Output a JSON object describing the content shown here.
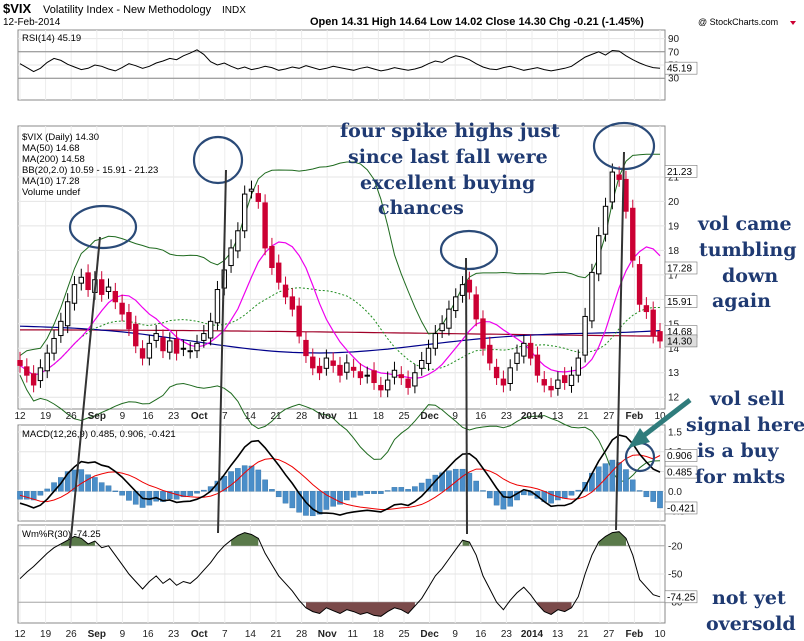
{
  "header": {
    "symbol": "$VIX",
    "name": "Volatility Index - New Methodology",
    "exchange": "INDX",
    "date": "12-Feb-2014",
    "watermark": "@ StockCharts.com",
    "quote": "Open 14.31  High 14.64  Low 14.02  Close 14.30  Chg -0.21 (-1.45%)"
  },
  "chart_data": [
    {
      "type": "line",
      "panel": "RSI",
      "legend": "RSI(14) 45.19",
      "ylim": [
        0,
        100
      ],
      "y_ticks": [
        30,
        50,
        70,
        90
      ],
      "last_value_tag": "45.19",
      "colors": {
        "line": "#000000",
        "band": "#9e9e9e"
      },
      "values": [
        52,
        46,
        40,
        45,
        54,
        60,
        57,
        51,
        47,
        43,
        45,
        50,
        48,
        44,
        41,
        46,
        52,
        49,
        45,
        48,
        53,
        56,
        60,
        58,
        64,
        68,
        73,
        66,
        55,
        50,
        53,
        48,
        44,
        47,
        43,
        45,
        48,
        46,
        42,
        44,
        47,
        45,
        49,
        46,
        43,
        45,
        48,
        46,
        44,
        42,
        45,
        47,
        44,
        41,
        43,
        46,
        44,
        42,
        44,
        47,
        52,
        56,
        54,
        60,
        64,
        62,
        58,
        52,
        47,
        44,
        43,
        46,
        48,
        45,
        42,
        44,
        46,
        43,
        41,
        43,
        45,
        48,
        55,
        62,
        66,
        70,
        65,
        72,
        71,
        64,
        58,
        53,
        49,
        46,
        45.19
      ]
    },
    {
      "type": "candlestick",
      "panel": "price",
      "legend": [
        "$VIX (Daily) 14.30",
        "MA(50) 14.68",
        "MA(200) 14.58",
        "BB(20,2.0) 10.59 - 15.91 - 21.23",
        "MA(10) 17.28",
        "Volume undef"
      ],
      "ylim": [
        11.6,
        23.0
      ],
      "y_ticks": [
        12,
        13,
        14,
        15,
        16,
        17,
        18,
        19,
        20,
        21
      ],
      "last_value_tags": [
        "21.23",
        "17.28",
        "15.91",
        "14.68",
        "14.30"
      ],
      "colors": {
        "up": "#000000",
        "down": "#cc0033",
        "ma50": "#00008b",
        "ma200": "#a00028",
        "bb": "#1e6a1e",
        "ma10": "#ee00ee",
        "bbmid": "#1e8c1e"
      },
      "x_ticks": [
        "12",
        "19",
        "26",
        "Sep",
        "9",
        "16",
        "23",
        "Oct",
        "7",
        "14",
        "21",
        "28",
        "Nov",
        "11",
        "18",
        "25",
        "Dec",
        "9",
        "16",
        "23",
        "2014",
        "13",
        "21",
        "27",
        "Feb",
        "10"
      ],
      "x_tick_dates": [
        "2013-08-12",
        "2013-08-19",
        "2013-08-26",
        "2013-09-03",
        "2013-09-09",
        "2013-09-16",
        "2013-09-23",
        "2013-10-01",
        "2013-10-07",
        "2013-10-14",
        "2013-10-21",
        "2013-10-28",
        "2013-11-01",
        "2013-11-11",
        "2013-11-18",
        "2013-11-25",
        "2013-12-02",
        "2013-12-09",
        "2013-12-16",
        "2013-12-23",
        "2014-01-02",
        "2014-01-13",
        "2014-01-21",
        "2014-01-27",
        "2014-02-03",
        "2014-02-10"
      ],
      "close": [
        13.3,
        12.9,
        12.5,
        13.2,
        13.8,
        14.4,
        15.1,
        15.9,
        16.6,
        16.9,
        16.4,
        16.8,
        16.2,
        16.5,
        15.9,
        15.4,
        14.8,
        14.1,
        13.6,
        14.2,
        14.6,
        13.9,
        14.3,
        13.8,
        14.0,
        13.9,
        14.2,
        14.6,
        15.1,
        16.4,
        17.2,
        18.1,
        18.8,
        20.3,
        20.5,
        20.0,
        18.1,
        17.3,
        16.7,
        16.1,
        15.6,
        14.5,
        13.7,
        13.2,
        13.0,
        13.6,
        13.3,
        12.9,
        13.4,
        13.1,
        12.8,
        12.9,
        12.6,
        12.3,
        12.7,
        13.1,
        12.8,
        12.4,
        13.0,
        13.5,
        14.0,
        14.6,
        15.0,
        15.6,
        16.1,
        16.6,
        16.3,
        15.2,
        14.0,
        13.4,
        12.8,
        12.5,
        13.2,
        13.8,
        14.2,
        13.6,
        12.9,
        12.5,
        12.3,
        12.7,
        12.6,
        12.9,
        13.6,
        15.3,
        17.1,
        18.6,
        19.8,
        21.2,
        20.9,
        19.6,
        17.6,
        15.8,
        15.5,
        14.5,
        14.3
      ]
    },
    {
      "type": "bar+line",
      "panel": "MACD",
      "legend": "MACD(12,26,9) 0.485, 0.906, -0.421",
      "ylim": [
        -0.7,
        1.6
      ],
      "y_ticks": [
        -0.5,
        0.0,
        0.5,
        1.0,
        1.5
      ],
      "last_value_tags": [
        "0.906",
        "0.485",
        "-0.421"
      ],
      "colors": {
        "macd": "#000000",
        "signal": "#ee0000",
        "hist": "#4a8ec9"
      },
      "macd": [
        -0.3,
        -0.35,
        -0.42,
        -0.35,
        -0.2,
        0.0,
        0.2,
        0.45,
        0.62,
        0.75,
        0.72,
        0.74,
        0.66,
        0.62,
        0.5,
        0.36,
        0.18,
        0.0,
        -0.18,
        -0.2,
        -0.16,
        -0.24,
        -0.22,
        -0.28,
        -0.26,
        -0.25,
        -0.2,
        -0.12,
        0.0,
        0.2,
        0.42,
        0.66,
        0.88,
        1.12,
        1.26,
        1.28,
        1.1,
        0.88,
        0.66,
        0.42,
        0.2,
        -0.05,
        -0.28,
        -0.45,
        -0.55,
        -0.55,
        -0.56,
        -0.6,
        -0.55,
        -0.52,
        -0.5,
        -0.48,
        -0.5,
        -0.52,
        -0.44,
        -0.34,
        -0.32,
        -0.36,
        -0.26,
        -0.12,
        0.06,
        0.26,
        0.44,
        0.62,
        0.8,
        0.94,
        0.95,
        0.82,
        0.58,
        0.34,
        0.08,
        -0.14,
        -0.16,
        -0.06,
        0.04,
        0.0,
        -0.12,
        -0.26,
        -0.38,
        -0.36,
        -0.36,
        -0.3,
        -0.16,
        0.1,
        0.44,
        0.76,
        1.02,
        1.3,
        1.42,
        1.38,
        1.2,
        0.94,
        0.74,
        0.56,
        0.485
      ],
      "signal": [
        -0.1,
        -0.15,
        -0.2,
        -0.25,
        -0.26,
        -0.22,
        -0.15,
        -0.05,
        0.08,
        0.2,
        0.3,
        0.39,
        0.44,
        0.48,
        0.49,
        0.46,
        0.41,
        0.33,
        0.23,
        0.15,
        0.09,
        0.02,
        -0.03,
        -0.08,
        -0.12,
        -0.14,
        -0.15,
        -0.15,
        -0.12,
        -0.06,
        0.04,
        0.16,
        0.3,
        0.47,
        0.62,
        0.74,
        0.81,
        0.83,
        0.8,
        0.72,
        0.62,
        0.48,
        0.33,
        0.17,
        0.03,
        -0.09,
        -0.18,
        -0.27,
        -0.33,
        -0.37,
        -0.4,
        -0.42,
        -0.44,
        -0.46,
        -0.46,
        -0.44,
        -0.42,
        -0.41,
        -0.38,
        -0.33,
        -0.25,
        -0.15,
        -0.03,
        0.1,
        0.24,
        0.38,
        0.49,
        0.56,
        0.56,
        0.51,
        0.43,
        0.31,
        0.22,
        0.16,
        0.13,
        0.1,
        0.06,
        0.0,
        -0.08,
        -0.14,
        -0.18,
        -0.2,
        -0.19,
        -0.13,
        -0.02,
        0.14,
        0.32,
        0.51,
        0.69,
        0.83,
        0.91,
        0.92,
        0.88,
        0.82,
        0.906
      ]
    },
    {
      "type": "line",
      "panel": "WilliamsR",
      "legend": "Wm%R(30) -74.25",
      "ylim": [
        -100,
        0
      ],
      "y_ticks": [
        -80,
        -50,
        -20
      ],
      "last_value_tag": "-74.25",
      "colors": {
        "line": "#000000",
        "overbought": "#5a7a4a",
        "oversold": "#7a4a4a"
      },
      "values": [
        -55,
        -48,
        -42,
        -35,
        -28,
        -22,
        -18,
        -14,
        -10,
        -12,
        -18,
        -15,
        -22,
        -20,
        -30,
        -40,
        -50,
        -58,
        -66,
        -58,
        -52,
        -60,
        -55,
        -62,
        -58,
        -60,
        -54,
        -46,
        -38,
        -28,
        -20,
        -14,
        -9,
        -6,
        -8,
        -12,
        -28,
        -40,
        -52,
        -60,
        -68,
        -78,
        -86,
        -90,
        -92,
        -86,
        -89,
        -92,
        -88,
        -90,
        -93,
        -91,
        -94,
        -95,
        -90,
        -86,
        -88,
        -92,
        -84,
        -76,
        -64,
        -52,
        -44,
        -34,
        -24,
        -14,
        -16,
        -30,
        -52,
        -66,
        -80,
        -88,
        -78,
        -70,
        -64,
        -72,
        -82,
        -90,
        -93,
        -88,
        -90,
        -86,
        -74,
        -50,
        -30,
        -16,
        -10,
        -6,
        -5,
        -12,
        -30,
        -56,
        -64,
        -72,
        -74.25
      ]
    }
  ],
  "annotations": {
    "spikes": [
      "four spike highs just",
      "since last fall were",
      "excellent buying",
      "chances"
    ],
    "tumbling": [
      "vol came",
      "tumbling",
      "down",
      "again"
    ],
    "sell_signal": [
      "vol sell",
      "signal here",
      "is a buy",
      "for mkts"
    ],
    "oversold": [
      "not yet",
      "oversold"
    ]
  }
}
